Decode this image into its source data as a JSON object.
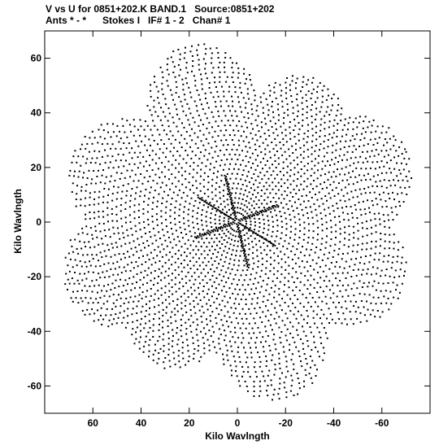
{
  "header": {
    "line1": "V vs U for 0851+202.K BAND.1   Source:0851+202",
    "line2": "Ants * - *      Stokes I   IF# 1 - 2   Chan# 1"
  },
  "chart_data": {
    "type": "scatter",
    "title": "V vs U for 0851+202.K BAND.1   Source:0851+202",
    "subtitle": "Ants * - *      Stokes I   IF# 1 - 2   Chan# 1",
    "xlabel": "Kilo Wavlngth",
    "ylabel": "Kilo Wavlngth",
    "xlim": [
      80,
      -80
    ],
    "ylim": [
      -70,
      70
    ],
    "x_reversed": true,
    "x_ticks": [
      60,
      40,
      20,
      0,
      -20,
      -40,
      -60
    ],
    "x_tick_labels": [
      "60",
      "40",
      "20",
      "0",
      "-20",
      "-40",
      "-60"
    ],
    "y_ticks": [
      -60,
      -40,
      -20,
      0,
      20,
      40,
      60
    ],
    "y_tick_labels": [
      "-60",
      "-40",
      "-20",
      "0",
      "20",
      "40",
      "60"
    ],
    "grid": false,
    "marker_color": "#000000",
    "pattern": {
      "description_free": true,
      "arm_angles_deg": [
        20,
        72,
        125,
        160
      ],
      "arm_lengths": [
        70,
        68,
        62,
        72
      ],
      "max_radius": 74,
      "spokes_deg": [
        30,
        75,
        160,
        210,
        255,
        340
      ],
      "spoke_length": 18
    }
  }
}
